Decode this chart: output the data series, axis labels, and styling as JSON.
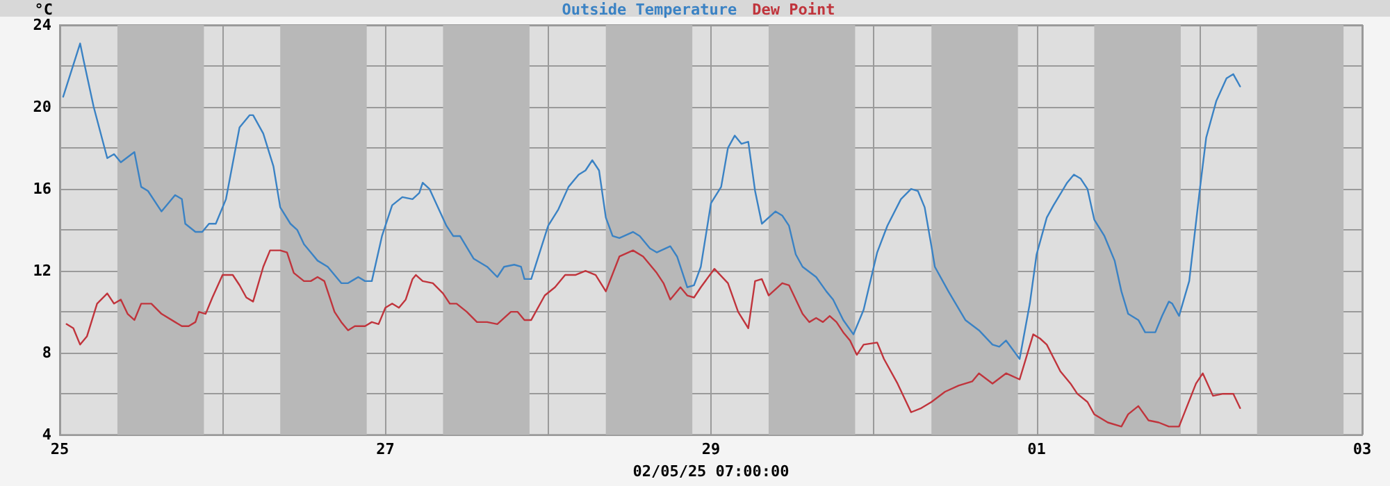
{
  "chart_data": {
    "type": "line",
    "ylabel": "°C",
    "xlabel": "02/05/25 07:00:00",
    "legend": "top",
    "grid": true,
    "marker": "none",
    "line_style": "solid",
    "xlim": [
      "--04-25",
      "--05-03"
    ],
    "xticks": [
      {
        "value": "--04-25",
        "label": "25"
      },
      {
        "value": "--04-26",
        "label": null
      },
      {
        "value": "--04-27",
        "label": "27"
      },
      {
        "value": "--04-28",
        "label": null
      },
      {
        "value": "--04-29",
        "label": "29"
      },
      {
        "value": "--04-30",
        "label": null
      },
      {
        "value": "--05-01",
        "label": "01"
      },
      {
        "value": "--05-02",
        "label": null
      },
      {
        "value": "--05-03",
        "label": "03"
      }
    ],
    "ylim": [
      4,
      24
    ],
    "yticks": [
      4,
      {
        "value": 6,
        "label": null
      },
      8,
      {
        "value": 10,
        "label": null
      },
      12,
      {
        "value": 14,
        "label": null
      },
      16,
      {
        "value": 18,
        "label": null
      },
      20,
      {
        "value": 22,
        "label": null
      },
      24
    ],
    "bands": [
      {
        "axis": "x",
        "from": "--04-25T08:30",
        "to": "--04-25T21:15",
        "color": "#b8b8b8"
      },
      {
        "axis": "x",
        "from": "--04-26T08:30",
        "to": "--04-26T21:15",
        "color": "#b8b8b8"
      },
      {
        "axis": "x",
        "from": "--04-27T08:30",
        "to": "--04-27T21:15",
        "color": "#b8b8b8"
      },
      {
        "axis": "x",
        "from": "--04-28T08:30",
        "to": "--04-28T21:15",
        "color": "#b8b8b8"
      },
      {
        "axis": "x",
        "from": "--04-29T08:30",
        "to": "--04-29T21:15",
        "color": "#b8b8b8"
      },
      {
        "axis": "x",
        "from": "--04-30T08:30",
        "to": "--04-30T21:15",
        "color": "#b8b8b8"
      },
      {
        "axis": "x",
        "from": "--05-01T08:30",
        "to": "--05-01T21:15",
        "color": "#b8b8b8"
      },
      {
        "axis": "x",
        "from": "--05-02T08:30",
        "to": "--05-02T21:15",
        "color": "#b8b8b8"
      }
    ],
    "series": [
      {
        "name": "Outside Temperature",
        "color": "#3a82c4",
        "x": [
          "--04-25T00:30",
          "--04-25T03:00",
          "--04-25T03:30",
          "--04-25T05:00",
          "--04-25T07:00",
          "--04-25T08:00",
          "--04-25T09:00",
          "--04-25T11:00",
          "--04-25T12:00",
          "--04-25T13:00",
          "--04-25T15:00",
          "--04-25T17:00",
          "--04-25T18:00",
          "--04-25T18:30",
          "--04-25T20:00",
          "--04-25T21:00",
          "--04-25T22:00",
          "--04-25T23:00",
          "--04-26T00:30",
          "--04-26T02:30",
          "--04-26T04:00",
          "--04-26T04:30",
          "--04-26T06:00",
          "--04-26T07:30",
          "--04-26T08:30",
          "--04-26T10:00",
          "--04-26T11:00",
          "--04-26T12:00",
          "--04-26T13:00",
          "--04-26T14:00",
          "--04-26T15:30",
          "--04-26T17:30",
          "--04-26T18:30",
          "--04-26T20:00",
          "--04-26T21:00",
          "--04-26T22:00",
          "--04-26T23:30",
          "--04-27T01:00",
          "--04-27T02:30",
          "--04-27T04:00",
          "--04-27T05:00",
          "--04-27T05:30",
          "--04-27T06:30",
          "--04-27T09:00",
          "--04-27T10:00",
          "--04-27T11:00",
          "--04-27T13:00",
          "--04-27T15:00",
          "--04-27T16:30",
          "--04-27T17:30",
          "--04-27T19:00",
          "--04-27T20:00",
          "--04-27T20:30",
          "--04-27T21:30",
          "--04-28T00:00",
          "--04-28T01:30",
          "--04-28T03:00",
          "--04-28T04:30",
          "--04-28T05:30",
          "--04-28T06:30",
          "--04-28T07:30",
          "--04-28T08:30",
          "--04-28T09:30",
          "--04-28T10:30",
          "--04-28T12:30",
          "--04-28T13:30",
          "--04-28T15:00",
          "--04-28T16:00",
          "--04-28T18:00",
          "--04-28T19:00",
          "--04-28T20:30",
          "--04-28T21:30",
          "--04-28T22:30",
          "--04-29T00:00",
          "--04-29T01:30",
          "--04-29T02:30",
          "--04-29T03:30",
          "--04-29T04:30",
          "--04-29T05:30",
          "--04-29T06:30",
          "--04-29T07:30",
          "--04-29T09:30",
          "--04-29T10:30",
          "--04-29T11:30",
          "--04-29T12:30",
          "--04-29T13:30",
          "--04-29T15:30",
          "--04-29T17:00",
          "--04-29T18:00",
          "--04-29T19:30",
          "--04-29T21:00",
          "--04-29T22:30",
          "--04-30T00:30",
          "--04-30T02:00",
          "--04-30T04:00",
          "--04-30T05:30",
          "--04-30T06:30",
          "--04-30T07:30",
          "--04-30T08:30",
          "--04-30T09:00",
          "--04-30T11:00",
          "--04-30T13:30",
          "--04-30T15:30",
          "--04-30T17:30",
          "--04-30T18:30",
          "--04-30T19:30",
          "--04-30T21:30",
          "--04-30T23:00",
          "--05-01T00:00",
          "--05-01T01:30",
          "--05-01T02:30",
          "--05-01T04:30",
          "--05-01T05:30",
          "--05-01T06:30",
          "--05-01T07:30",
          "--05-01T08:30",
          "--05-01T10:00",
          "--05-01T11:30",
          "--05-01T12:30",
          "--05-01T13:30",
          "--05-01T15:00",
          "--05-01T16:00",
          "--05-01T17:30",
          "--05-01T18:30",
          "--05-01T19:30",
          "--05-01T20:00",
          "--05-01T21:00",
          "--05-01T22:30",
          "--05-02T00:00",
          "--05-02T01:00",
          "--05-02T02:30",
          "--05-02T04:00",
          "--05-02T05:00",
          "--05-02T06:00"
        ],
        "values": [
          20.5,
          23.1,
          22.3,
          20.0,
          17.5,
          17.7,
          17.3,
          17.8,
          16.1,
          15.9,
          14.9,
          15.7,
          15.5,
          14.3,
          13.9,
          13.9,
          14.3,
          14.3,
          15.5,
          19.0,
          19.6,
          19.6,
          18.7,
          17.1,
          15.1,
          14.3,
          14.0,
          13.3,
          12.9,
          12.5,
          12.2,
          11.4,
          11.4,
          11.7,
          11.5,
          11.5,
          13.7,
          15.2,
          15.6,
          15.5,
          15.8,
          16.3,
          16.0,
          14.2,
          13.7,
          13.7,
          12.6,
          12.2,
          11.7,
          12.2,
          12.3,
          12.2,
          11.6,
          11.6,
          14.2,
          15.0,
          16.1,
          16.7,
          16.9,
          17.4,
          16.9,
          14.6,
          13.7,
          13.6,
          13.9,
          13.7,
          13.1,
          12.9,
          13.2,
          12.7,
          11.2,
          11.3,
          12.2,
          15.3,
          16.1,
          18.0,
          18.6,
          18.2,
          18.3,
          15.9,
          14.3,
          14.9,
          14.7,
          14.2,
          12.8,
          12.2,
          11.7,
          11.0,
          10.6,
          9.6,
          8.9,
          10.1,
          12.9,
          14.2,
          15.5,
          16.0,
          15.9,
          15.1,
          13.2,
          12.2,
          11.0,
          9.6,
          9.1,
          8.4,
          8.3,
          8.6,
          7.7,
          10.4,
          12.8,
          14.6,
          15.2,
          16.3,
          16.7,
          16.5,
          16.0,
          14.5,
          13.7,
          12.5,
          11.0,
          9.9,
          9.6,
          9.0,
          9.0,
          9.8,
          10.5,
          10.4,
          9.8,
          11.5,
          15.8,
          18.5,
          20.3,
          21.4,
          21.6,
          21.0
        ]
      },
      {
        "name": "Dew Point",
        "color": "#c0343c",
        "x": [
          "--04-25T01:00",
          "--04-25T02:00",
          "--04-25T03:00",
          "--04-25T04:00",
          "--04-25T05:30",
          "--04-25T07:00",
          "--04-25T08:00",
          "--04-25T09:00",
          "--04-25T10:00",
          "--04-25T11:00",
          "--04-25T12:00",
          "--04-25T13:30",
          "--04-25T15:00",
          "--04-25T17:00",
          "--04-25T18:00",
          "--04-25T19:00",
          "--04-25T20:00",
          "--04-25T20:30",
          "--04-25T21:30",
          "--04-25T22:30",
          "--04-26T00:00",
          "--04-26T01:30",
          "--04-26T02:30",
          "--04-26T03:30",
          "--04-26T04:30",
          "--04-26T06:00",
          "--04-26T07:00",
          "--04-26T08:30",
          "--04-26T09:30",
          "--04-26T10:30",
          "--04-26T12:00",
          "--04-26T13:00",
          "--04-26T14:00",
          "--04-26T15:00",
          "--04-26T16:30",
          "--04-26T17:30",
          "--04-26T18:30",
          "--04-26T19:30",
          "--04-26T21:00",
          "--04-26T22:00",
          "--04-26T23:00",
          "--04-27T00:00",
          "--04-27T01:00",
          "--04-27T02:00",
          "--04-27T03:00",
          "--04-27T04:00",
          "--04-27T04:30",
          "--04-27T05:30",
          "--04-27T07:00",
          "--04-27T08:30",
          "--04-27T09:30",
          "--04-27T10:30",
          "--04-27T12:00",
          "--04-27T13:30",
          "--04-27T15:00",
          "--04-27T16:30",
          "--04-27T18:30",
          "--04-27T19:30",
          "--04-27T20:30",
          "--04-27T21:30",
          "--04-27T23:30",
          "--04-28T01:00",
          "--04-28T02:30",
          "--04-28T04:00",
          "--04-28T05:30",
          "--04-28T07:00",
          "--04-28T08:30",
          "--04-28T10:30",
          "--04-28T12:30",
          "--04-28T14:00",
          "--04-28T16:00",
          "--04-28T17:00",
          "--04-28T18:00",
          "--04-28T19:30",
          "--04-28T20:30",
          "--04-28T21:30",
          "--04-28T22:30",
          "--04-29T00:30",
          "--04-29T02:30",
          "--04-29T04:00",
          "--04-29T05:30",
          "--04-29T06:30",
          "--04-29T07:30",
          "--04-29T08:30",
          "--04-29T10:30",
          "--04-29T11:30",
          "--04-29T13:30",
          "--04-29T14:30",
          "--04-29T15:30",
          "--04-29T16:30",
          "--04-29T17:30",
          "--04-29T18:30",
          "--04-29T19:30",
          "--04-29T20:30",
          "--04-29T21:30",
          "--04-29T22:30",
          "--04-30T00:30",
          "--04-30T01:30",
          "--04-30T03:30",
          "--04-30T05:30",
          "--04-30T07:00",
          "--04-30T08:30",
          "--04-30T10:30",
          "--04-30T12:30",
          "--04-30T14:30",
          "--04-30T15:30",
          "--04-30T17:30",
          "--04-30T19:30",
          "--04-30T21:30",
          "--04-30T23:30",
          "--05-01T00:30",
          "--05-01T01:30",
          "--05-01T03:30",
          "--05-01T05:00",
          "--05-01T06:00",
          "--05-01T07:30",
          "--05-01T08:30",
          "--05-01T10:30",
          "--05-01T12:30",
          "--05-01T13:30",
          "--05-01T15:00",
          "--05-01T16:30",
          "--05-01T18:00",
          "--05-01T19:30",
          "--05-01T21:00",
          "--05-01T23:30",
          "--05-02T00:30",
          "--05-02T02:00",
          "--05-02T03:30",
          "--05-02T05:00",
          "--05-02T06:00"
        ],
        "values": [
          9.4,
          9.2,
          8.4,
          8.8,
          10.4,
          10.9,
          10.4,
          10.6,
          9.9,
          9.6,
          10.4,
          10.4,
          9.9,
          9.5,
          9.3,
          9.3,
          9.5,
          10.0,
          9.9,
          10.7,
          11.8,
          11.8,
          11.3,
          10.7,
          10.5,
          12.2,
          13.0,
          13.0,
          12.9,
          11.9,
          11.5,
          11.5,
          11.7,
          11.5,
          10.0,
          9.5,
          9.1,
          9.3,
          9.3,
          9.5,
          9.4,
          10.2,
          10.4,
          10.2,
          10.6,
          11.6,
          11.8,
          11.5,
          11.4,
          10.9,
          10.4,
          10.4,
          10.0,
          9.5,
          9.5,
          9.4,
          10.0,
          10.0,
          9.6,
          9.6,
          10.8,
          11.2,
          11.8,
          11.8,
          12.0,
          11.8,
          11.0,
          12.7,
          13.0,
          12.7,
          11.9,
          11.4,
          10.6,
          11.2,
          10.8,
          10.7,
          11.2,
          12.1,
          11.4,
          10.0,
          9.2,
          11.5,
          11.6,
          10.8,
          11.4,
          11.3,
          9.9,
          9.5,
          9.7,
          9.5,
          9.8,
          9.5,
          9.0,
          8.6,
          7.9,
          8.4,
          8.5,
          7.7,
          6.5,
          5.1,
          5.3,
          5.6,
          6.1,
          6.4,
          6.6,
          7.0,
          6.5,
          7.0,
          6.7,
          8.9,
          8.7,
          8.4,
          7.1,
          6.5,
          6.0,
          5.6,
          5.0,
          4.6,
          4.4,
          5.0,
          5.4,
          4.7,
          4.6,
          4.4,
          4.4,
          6.5,
          7.0,
          5.9,
          6.0,
          6.0,
          5.3
        ]
      }
    ]
  }
}
